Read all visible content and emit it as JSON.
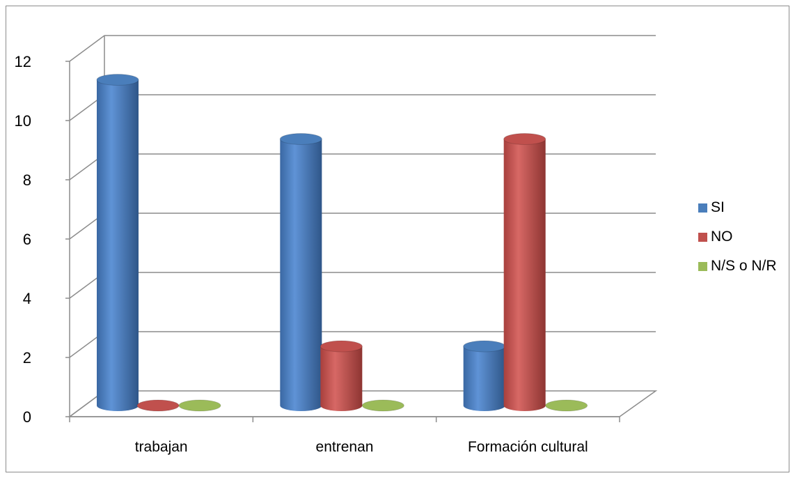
{
  "chart_data": {
    "type": "bar",
    "style": "3d-cylinder",
    "categories": [
      "trabajan",
      "entrenan",
      "Formación cultural"
    ],
    "series": [
      {
        "name": "SI",
        "values": [
          11,
          9,
          2
        ],
        "color": "#4a7ebb"
      },
      {
        "name": "NO",
        "values": [
          0,
          2,
          9
        ],
        "color": "#c0504d"
      },
      {
        "name": "N/S o N/R",
        "values": [
          0,
          0,
          0
        ],
        "color": "#9bbb59"
      }
    ],
    "ylim": [
      0,
      12
    ],
    "yticks": [
      "0",
      "2",
      "4",
      "6",
      "8",
      "10",
      "12"
    ],
    "grid": true,
    "legend_position": "right",
    "title": "",
    "xlabel": "",
    "ylabel": ""
  }
}
